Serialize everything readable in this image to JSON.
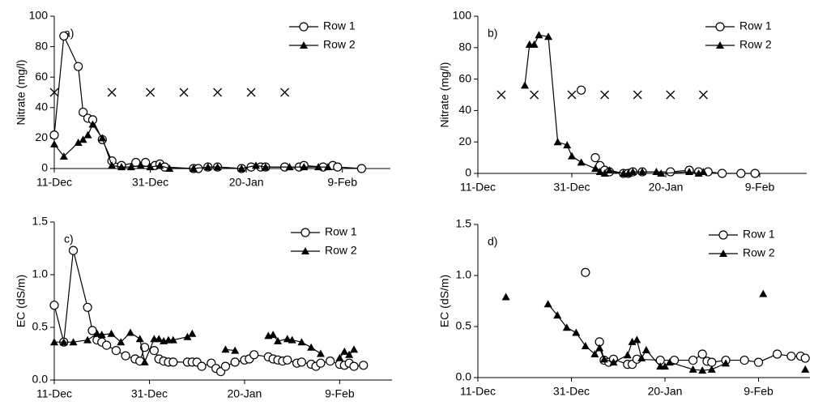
{
  "chart_data": [
    {
      "type": "line",
      "annotation": "a)",
      "ylabel": "Nitrate (mg/l)",
      "xlim": [
        "11-Dec",
        "19-Feb"
      ],
      "xticks": [
        "11-Dec",
        "31-Dec",
        "20-Jan",
        "9-Feb"
      ],
      "ylim": [
        0,
        100
      ],
      "yticks": [
        0,
        20,
        40,
        60,
        80,
        100
      ],
      "legend": "upper right",
      "series": [
        {
          "name": "Row 1",
          "color": "#000000",
          "marker": "circle",
          "x": [
            "11-Dec",
            "13-Dec",
            "16-Dec",
            "17-Dec",
            "18-Dec",
            "19-Dec",
            "21-Dec",
            "23-Dec",
            "25-Dec",
            "28-Dec",
            "30-Dec",
            "1-Jan",
            "2-Jan",
            "3-Jan",
            "9-Jan",
            "10-Jan",
            "12-Jan",
            "14-Jan",
            "19-Jan",
            "21-Jan",
            "23-Jan",
            "24-Jan",
            "28-Jan",
            "31-Jan",
            "1-Feb",
            "5-Feb",
            "7-Feb",
            "8-Feb",
            "13-Feb"
          ],
          "values": [
            22,
            87,
            67,
            37,
            33,
            32,
            19,
            5,
            2,
            4,
            4,
            2,
            3,
            1,
            0,
            0,
            1,
            1,
            0,
            1,
            1,
            1,
            1,
            1,
            2,
            1,
            2,
            1,
            0
          ]
        },
        {
          "name": "Row 2",
          "color": "#000000",
          "marker": "triangle",
          "x": [
            "11-Dec",
            "13-Dec",
            "16-Dec",
            "17-Dec",
            "18-Dec",
            "19-Dec",
            "21-Dec",
            "23-Dec",
            "25-Dec",
            "27-Dec",
            "29-Dec",
            "31-Dec",
            "2-Jan",
            "4-Jan",
            "9-Jan",
            "12-Jan",
            "14-Jan",
            "19-Jan",
            "22-Jan",
            "24-Jan",
            "29-Jan",
            "1-Feb",
            "4-Feb",
            "6-Feb"
          ],
          "values": [
            16,
            8,
            17,
            19,
            22,
            29,
            20,
            2,
            1,
            1,
            2,
            1,
            2,
            0,
            0,
            1,
            1,
            0,
            2,
            1,
            1,
            1,
            1,
            1
          ]
        },
        {
          "color": "#000000",
          "marker": "x",
          "line": false,
          "x": [
            "11-Dec",
            "23-Dec",
            "31-Dec",
            "7-Jan",
            "14-Jan",
            "21-Jan",
            "28-Jan"
          ],
          "values": [
            50,
            50,
            50,
            50,
            50,
            50,
            50
          ]
        }
      ]
    },
    {
      "type": "line",
      "annotation": "b)",
      "ylabel": "Nitrate (mg/l)",
      "xlim": [
        "11-Dec",
        "19-Feb"
      ],
      "xticks": [
        "11-Dec",
        "31-Dec",
        "20-Jan",
        "9-Feb"
      ],
      "ylim": [
        0,
        100
      ],
      "yticks": [
        0,
        20,
        40,
        60,
        80,
        100
      ],
      "legend": "upper right",
      "series": [
        {
          "name": "Row 1",
          "color": "#000000",
          "marker": "circle",
          "x": [
            "2-Jan",
            "4-Jan",
            "5-Jan",
            "6-Jan",
            "7-Jan",
            "8-Jan",
            "11-Jan",
            "12-Jan",
            "13-Jan",
            "15-Jan",
            "21-Jan",
            "25-Jan",
            "27-Jan",
            "29-Jan",
            "1-Feb",
            "5-Feb",
            "8-Feb"
          ],
          "values": [
            53,
            null,
            10,
            5,
            2,
            1,
            0,
            0,
            1,
            1,
            1,
            2,
            1,
            1,
            0,
            0,
            0
          ]
        },
        {
          "name": "Row 2",
          "color": "#000000",
          "marker": "triangle",
          "x": [
            "21-Dec",
            "22-Dec",
            "23-Dec",
            "24-Dec",
            "26-Dec",
            "28-Dec",
            "30-Dec",
            "31-Dec",
            "2-Jan",
            "5-Jan",
            "6-Jan",
            "7-Jan",
            "8-Jan",
            "11-Jan",
            "12-Jan",
            "13-Jan",
            "15-Jan",
            "18-Jan",
            "19-Jan",
            "25-Jan",
            "27-Jan",
            "28-Jan"
          ],
          "values": [
            56,
            82,
            82,
            88,
            87,
            20,
            18,
            11,
            7,
            3,
            1,
            0,
            2,
            0,
            0,
            1,
            1,
            1,
            0,
            1,
            0,
            1
          ]
        },
        {
          "color": "#000000",
          "marker": "x",
          "line": false,
          "x": [
            "16-Dec",
            "23-Dec",
            "31-Dec",
            "7-Jan",
            "14-Jan",
            "21-Jan",
            "28-Jan"
          ],
          "values": [
            50,
            50,
            50,
            50,
            50,
            50,
            50
          ]
        }
      ]
    },
    {
      "type": "line",
      "annotation": "c)",
      "ylabel": "EC (dS/m)",
      "xlim": [
        "11-Dec",
        "20-Feb"
      ],
      "xticks": [
        "11-Dec",
        "31-Dec",
        "20-Jan",
        "9-Feb"
      ],
      "ylim": [
        0,
        1.5
      ],
      "yticks": [
        {
          "value": 0,
          "label": "0.0"
        },
        0.5,
        {
          "value": 1,
          "label": "1.0"
        },
        1.5
      ],
      "legend": "upper right",
      "series": [
        {
          "name": "Row 1",
          "color": "#000000",
          "marker": "circle",
          "x": [
            "11-Dec",
            "13-Dec",
            "15-Dec",
            "18-Dec",
            "19-Dec",
            "20-Dec",
            "21-Dec",
            "22-Dec",
            "24-Dec",
            "26-Dec",
            "28-Dec",
            "29-Dec",
            "30-Dec",
            "1-Jan",
            "2-Jan",
            "3-Jan",
            "4-Jan",
            "5-Jan",
            "8-Jan",
            "9-Jan",
            "10-Jan",
            "11-Jan",
            "13-Jan",
            "14-Jan",
            "15-Jan",
            "16-Jan",
            "18-Jan",
            "20-Jan",
            "21-Jan",
            "22-Jan",
            "25-Jan",
            "26-Jan",
            "27-Jan",
            "28-Jan",
            "29-Jan",
            "31-Jan",
            "1-Feb",
            "3-Feb",
            "4-Feb",
            "5-Feb",
            "7-Feb",
            "9-Feb",
            "10-Feb",
            "11-Feb",
            "12-Feb",
            "14-Feb"
          ],
          "values": [
            0.71,
            0.36,
            1.23,
            0.69,
            0.47,
            0.38,
            0.36,
            0.33,
            0.28,
            0.23,
            0.2,
            0.18,
            0.31,
            0.28,
            0.2,
            0.18,
            0.17,
            0.17,
            0.17,
            0.17,
            0.17,
            0.13,
            0.16,
            0.11,
            0.08,
            0.13,
            0.17,
            0.19,
            0.2,
            0.24,
            0.22,
            0.2,
            0.19,
            0.18,
            0.19,
            0.16,
            0.17,
            0.15,
            0.13,
            0.16,
            0.18,
            0.15,
            0.14,
            0.16,
            0.13,
            0.14
          ]
        },
        {
          "name": "Row 2",
          "color": "#000000",
          "marker": "triangle",
          "x": [
            "11-Dec",
            "13-Dec",
            "15-Dec",
            "18-Dec",
            "20-Dec",
            "21-Dec",
            "23-Dec",
            "25-Dec",
            "27-Dec",
            "29-Dec",
            "30-Dec",
            "1-Jan",
            "2-Jan",
            "3-Jan",
            "4-Jan",
            "5-Jan",
            "8-Jan",
            "9-Jan",
            "12-Jan",
            "16-Jan",
            "18-Jan",
            "21-Jan",
            "25-Jan",
            "26-Jan",
            "27-Jan",
            "29-Jan",
            "30-Jan",
            "1-Feb",
            "3-Feb",
            "5-Feb",
            "7-Feb",
            "9-Feb",
            "10-Feb",
            "11-Feb",
            "12-Feb"
          ],
          "values": [
            0.36,
            0.36,
            0.36,
            0.38,
            0.44,
            0.43,
            0.44,
            0.36,
            0.45,
            0.39,
            0.17,
            0.39,
            0.39,
            0.37,
            0.38,
            0.38,
            0.41,
            0.44,
            null,
            0.29,
            0.28,
            null,
            0.42,
            0.43,
            0.37,
            0.39,
            0.38,
            0.36,
            0.31,
            0.25,
            null,
            0.21,
            0.27,
            0.24,
            0.29
          ]
        }
      ]
    },
    {
      "type": "line",
      "annotation": "d)",
      "ylabel": "EC (dS/m)",
      "xlim": [
        "11-Dec",
        "20-Feb"
      ],
      "xticks": [
        "11-Dec",
        "31-Dec",
        "20-Jan",
        "9-Feb"
      ],
      "ylim": [
        0,
        1.5
      ],
      "yticks": [
        {
          "value": 0,
          "label": "0.0"
        },
        0.5,
        {
          "value": 1,
          "label": "1.0"
        },
        1.5
      ],
      "legend": "upper right",
      "series": [
        {
          "name": "Row 1",
          "color": "#000000",
          "marker": "circle",
          "x": [
            "3-Jan",
            "5-Jan",
            "6-Jan",
            "7-Jan",
            "8-Jan",
            "9-Jan",
            "12-Jan",
            "13-Jan",
            "14-Jan",
            "19-Jan",
            "22-Jan",
            "26-Jan",
            "28-Jan",
            "29-Jan",
            "30-Jan",
            "2-Feb",
            "6-Feb",
            "9-Feb",
            "13-Feb",
            "16-Feb",
            "18-Feb",
            "19-Feb"
          ],
          "values": [
            1.03,
            null,
            0.35,
            0.17,
            0.15,
            0.18,
            0.13,
            0.13,
            0.18,
            0.17,
            0.17,
            0.17,
            0.23,
            0.16,
            0.15,
            0.17,
            0.17,
            0.15,
            0.23,
            0.21,
            0.21,
            0.19
          ]
        },
        {
          "name": "Row 2",
          "color": "#000000",
          "marker": "triangle",
          "x": [
            "17-Dec",
            "22-Dec",
            "26-Dec",
            "28-Dec",
            "30-Dec",
            "1-Jan",
            "3-Jan",
            "5-Jan",
            "6-Jan",
            "7-Jan",
            "9-Jan",
            "12-Jan",
            "13-Jan",
            "14-Jan",
            "15-Jan",
            "16-Jan",
            "19-Jan",
            "20-Jan",
            "21-Jan",
            "26-Jan",
            "28-Jan",
            "30-Jan",
            "2-Feb",
            "6-Feb",
            "10-Feb",
            "15-Feb",
            "19-Feb"
          ],
          "values": [
            0.79,
            null,
            0.72,
            0.61,
            0.49,
            0.44,
            0.31,
            0.23,
            0.29,
            0.18,
            0.15,
            0.22,
            0.35,
            0.37,
            0.19,
            0.27,
            0.11,
            0.11,
            0.15,
            0.08,
            0.07,
            0.08,
            0.14,
            null,
            0.82,
            null,
            0.08
          ]
        }
      ]
    }
  ]
}
